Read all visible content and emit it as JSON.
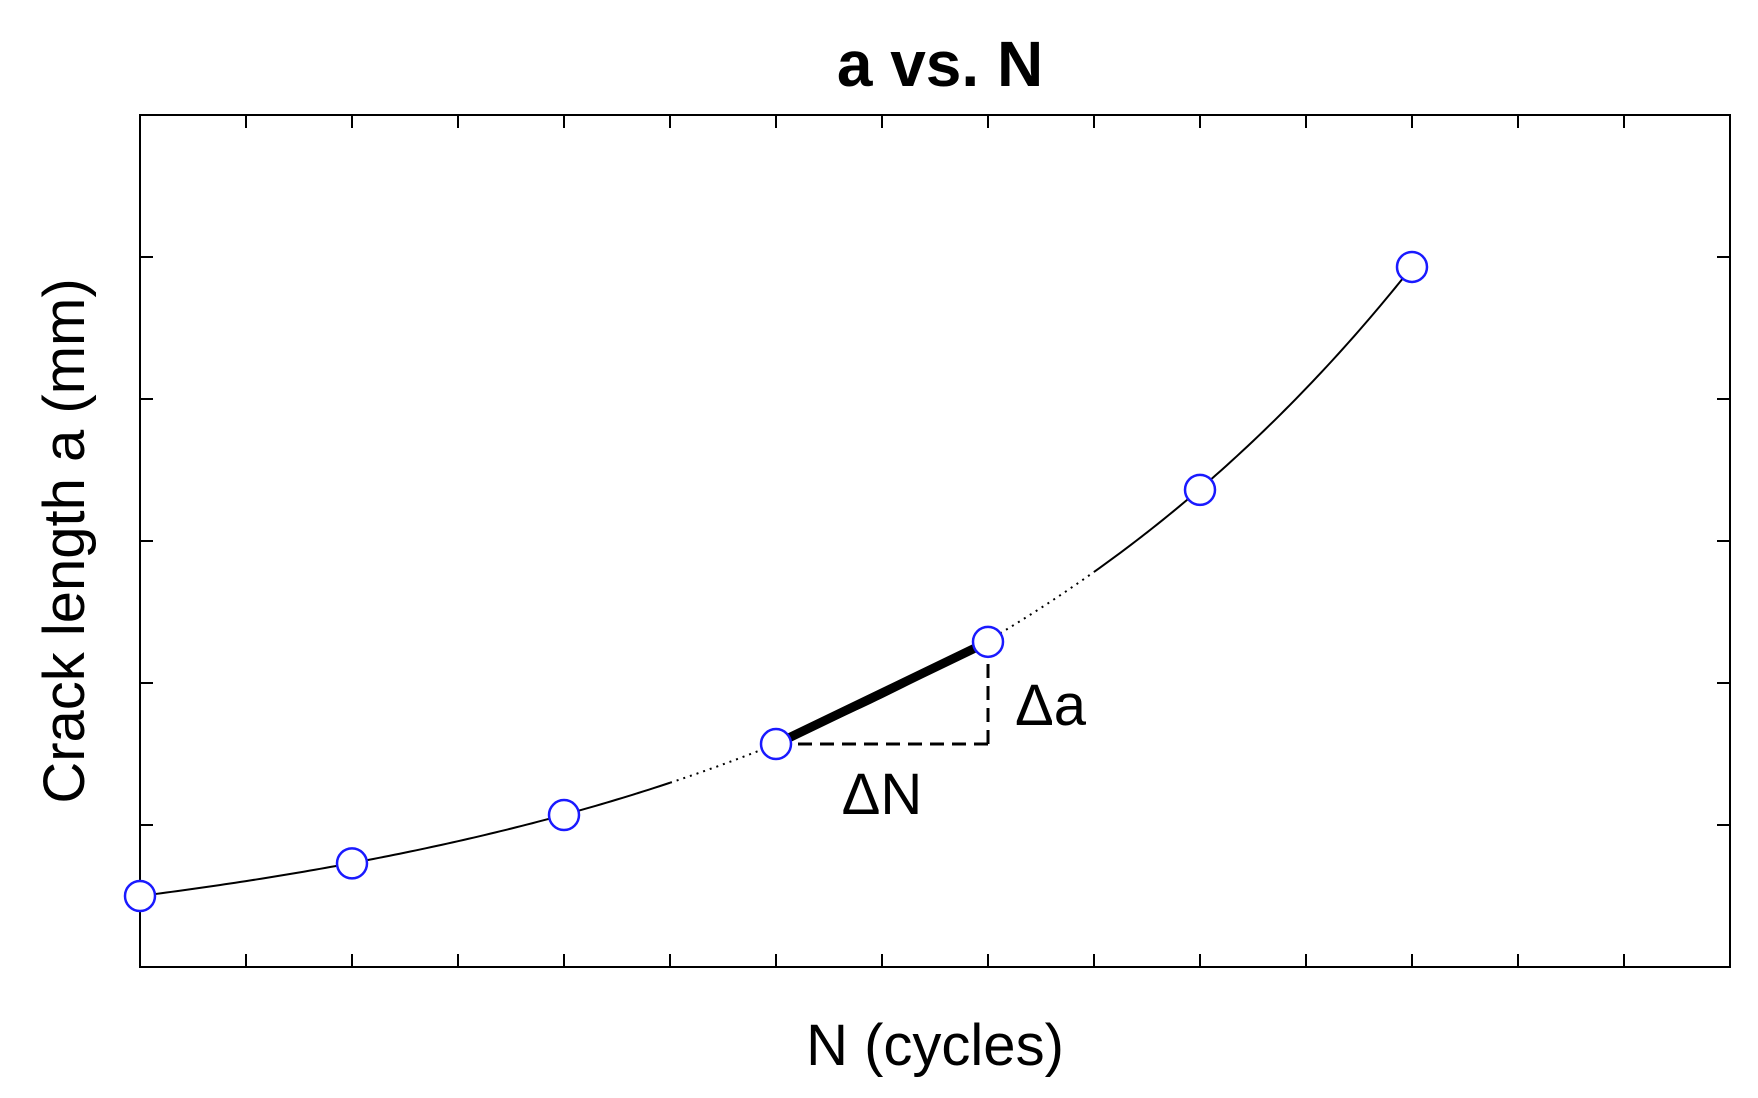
{
  "chart_data": {
    "type": "line",
    "title": "a vs. N",
    "xlabel": "N (cycles)",
    "ylabel": "Crack length a (mm)",
    "xlim": [
      0,
      15
    ],
    "ylim": [
      0,
      6
    ],
    "x_ticks": [
      0,
      1,
      2,
      3,
      4,
      5,
      6,
      7,
      8,
      9,
      10,
      11,
      12,
      13,
      14,
      15
    ],
    "y_ticks": [
      0,
      1,
      2,
      3,
      4,
      5,
      6
    ],
    "tick_labels_shown": false,
    "grid": false,
    "series": [
      {
        "x": [
          0,
          2,
          4,
          6,
          8,
          10,
          12
        ],
        "y": [
          0.5,
          0.73,
          1.07,
          1.57,
          2.29,
          3.36,
          4.93
        ],
        "marker": "open-circle",
        "marker_color": "#1a1aff",
        "line_color": "#000000",
        "dotted_segments": [
          [
            5,
            6
          ],
          [
            8,
            9
          ]
        ]
      }
    ],
    "annotations": {
      "highlight_segment": {
        "from": [
          6,
          1.57
        ],
        "to": [
          8,
          2.29
        ],
        "color": "#000000"
      },
      "delta_n_label": "ΔN",
      "delta_a_label": "Δa"
    }
  }
}
